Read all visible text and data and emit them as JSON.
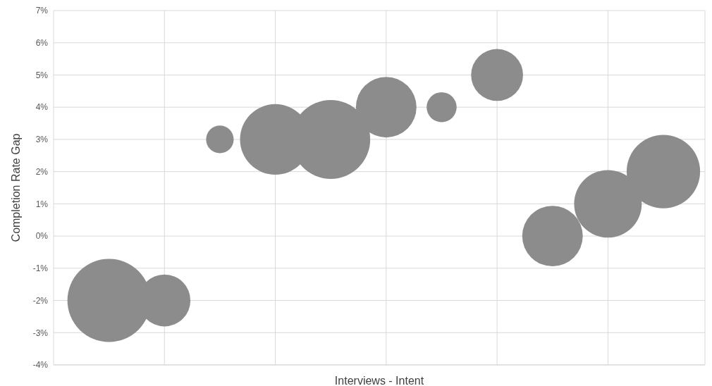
{
  "chart_data": {
    "type": "bubble",
    "xlabel": "Interviews - Intent",
    "ylabel": "Completion Rate Gap",
    "categories": [
      null,
      null,
      null,
      null,
      null,
      null,
      null,
      null,
      null,
      null,
      null
    ],
    "series": [
      {
        "color": "#8c8c8c",
        "values": [
          -2,
          -2,
          3,
          3,
          3,
          4,
          4,
          5,
          0,
          1,
          2
        ],
        "sizes": [
          1,
          0.39,
          0.11,
          0.72,
          0.9,
          0.53,
          0.13,
          0.39,
          0.53,
          0.66,
          0.78
        ]
      }
    ],
    "ylim": [
      -4,
      7
    ],
    "yticks": [
      {
        "value": -4,
        "label": "-4%"
      },
      {
        "value": -3,
        "label": "-3%"
      },
      {
        "value": -2,
        "label": "-2%"
      },
      {
        "value": -1,
        "label": "-1%"
      },
      {
        "value": 0,
        "label": "0%"
      },
      {
        "value": 1,
        "label": "1%"
      },
      {
        "value": 2,
        "label": "2%"
      },
      {
        "value": 3,
        "label": "3%"
      },
      {
        "value": 4,
        "label": "4%"
      },
      {
        "value": 5,
        "label": "5%"
      },
      {
        "value": 6,
        "label": "6%"
      },
      {
        "value": 7,
        "label": "7%"
      }
    ],
    "grid": true
  }
}
